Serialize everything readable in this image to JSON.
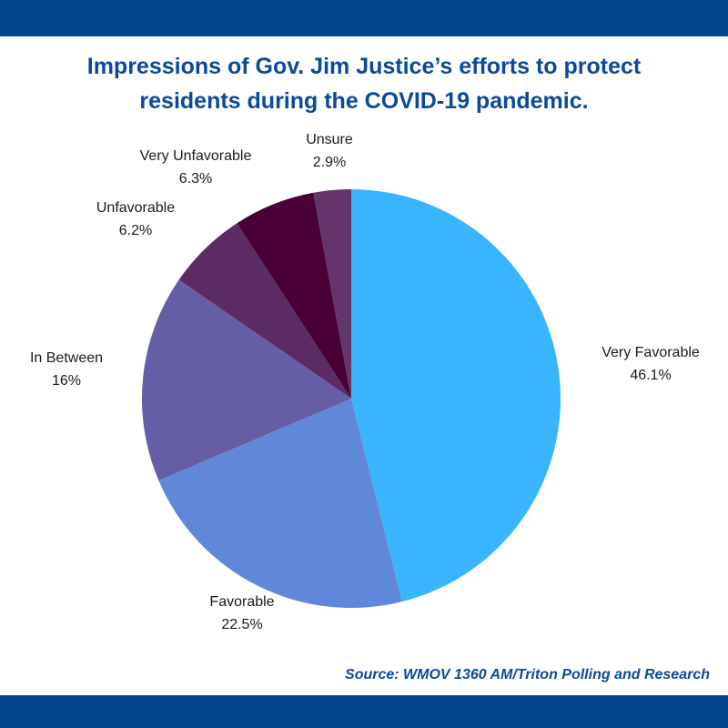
{
  "title_lines": [
    "Impressions of Gov. Jim Justice’s efforts to protect",
    "residents during the COVID-19 pandemic."
  ],
  "source": "Source: WMOV 1360 AM/Triton Polling and Research",
  "colors": {
    "band": "#03468f",
    "title": "#0a4a99"
  },
  "chart_data": {
    "type": "pie",
    "title": "Impressions of Gov. Jim Justice’s efforts to protect residents during the COVID-19 pandemic.",
    "slices": [
      {
        "label": "Very Favorable",
        "value": 46.1,
        "value_label": "46.1%",
        "color": "#38b5fc"
      },
      {
        "label": "Favorable",
        "value": 22.5,
        "value_label": "22.5%",
        "color": "#5f88d9"
      },
      {
        "label": "In Between",
        "value": 16,
        "value_label": "16%",
        "color": "#655da6"
      },
      {
        "label": "Unfavorable",
        "value": 6.2,
        "value_label": "6.2%",
        "color": "#5b2c63"
      },
      {
        "label": "Very Unfavorable",
        "value": 6.3,
        "value_label": "6.3%",
        "color": "#4a0034"
      },
      {
        "label": "Unsure",
        "value": 2.9,
        "value_label": "2.9%",
        "color": "#63356a"
      }
    ]
  }
}
